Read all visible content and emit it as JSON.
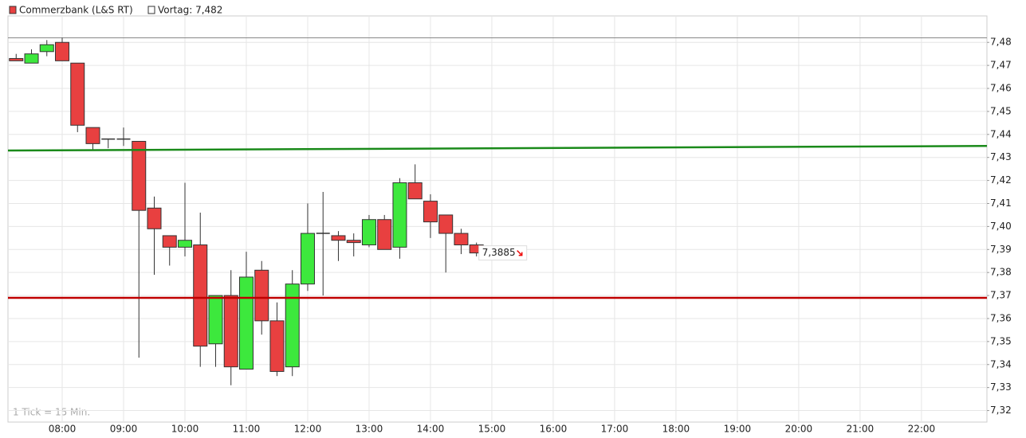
{
  "chart_data": {
    "type": "candlestick",
    "x": [
      "07:15",
      "07:30",
      "07:45",
      "08:00",
      "08:15",
      "08:30",
      "08:45",
      "09:00",
      "09:15",
      "09:30",
      "09:45",
      "10:00",
      "10:15",
      "10:30",
      "10:45",
      "11:00",
      "11:15",
      "11:30",
      "11:45",
      "12:00",
      "12:15",
      "12:30",
      "12:45",
      "13:00",
      "13:15",
      "13:30",
      "13:45",
      "14:00",
      "14:15",
      "14:30",
      "14:45"
    ],
    "series": [
      {
        "name": "Commerzbank (L&S RT)",
        "color": "#e84040",
        "up_color": "#3de83d",
        "open": [
          7.473,
          7.471,
          7.476,
          7.48,
          7.471,
          7.443,
          7.438,
          7.438,
          7.437,
          7.408,
          7.396,
          7.391,
          7.392,
          7.349,
          7.37,
          7.338,
          7.381,
          7.359,
          7.339,
          7.375,
          7.397,
          7.396,
          7.394,
          7.392,
          7.403,
          7.391,
          7.419,
          7.411,
          7.405,
          7.397,
          7.392
        ],
        "high": [
          7.475,
          7.477,
          7.481,
          7.482,
          7.471,
          7.443,
          7.438,
          7.443,
          7.437,
          7.413,
          7.396,
          7.419,
          7.406,
          7.37,
          7.381,
          7.389,
          7.385,
          7.367,
          7.381,
          7.41,
          7.415,
          7.398,
          7.397,
          7.405,
          7.405,
          7.421,
          7.427,
          7.414,
          7.405,
          7.399,
          7.393
        ],
        "low": [
          7.472,
          7.471,
          7.474,
          7.472,
          7.441,
          7.433,
          7.434,
          7.435,
          7.343,
          7.379,
          7.383,
          7.387,
          7.339,
          7.339,
          7.331,
          7.338,
          7.353,
          7.335,
          7.335,
          7.372,
          7.37,
          7.385,
          7.387,
          7.391,
          7.39,
          7.386,
          7.412,
          7.395,
          7.38,
          7.388,
          7.387
        ],
        "close": [
          7.472,
          7.475,
          7.479,
          7.472,
          7.444,
          7.436,
          7.438,
          7.438,
          7.407,
          7.399,
          7.391,
          7.394,
          7.348,
          7.37,
          7.339,
          7.378,
          7.359,
          7.337,
          7.375,
          7.397,
          7.397,
          7.394,
          7.393,
          7.403,
          7.39,
          7.419,
          7.412,
          7.402,
          7.397,
          7.392,
          7.3885
        ]
      }
    ],
    "previous_close": {
      "value": 7.482,
      "label": "Vortag: 7,482"
    },
    "last_price": {
      "value": 7.3885,
      "label": "7,3885"
    },
    "lines": [
      {
        "color": "#1a8a1a",
        "values": [
          7.433,
          7.435
        ]
      },
      {
        "color": "#c00000",
        "values": [
          7.369,
          7.369
        ]
      }
    ],
    "annotation": "1 Tick = 15 Min.",
    "xlim": [
      "07:07",
      "23:04"
    ],
    "xticks": [
      "08:00",
      "09:00",
      "10:00",
      "11:00",
      "12:00",
      "13:00",
      "14:00",
      "15:00",
      "16:00",
      "17:00",
      "18:00",
      "19:00",
      "20:00",
      "21:00",
      "22:00"
    ],
    "ylim": [
      7.315,
      7.4915
    ],
    "yticks": [
      {
        "value": 7.32,
        "label": "7,32"
      },
      {
        "value": 7.33,
        "label": "7,33"
      },
      {
        "value": 7.34,
        "label": "7,34"
      },
      {
        "value": 7.35,
        "label": "7,35"
      },
      {
        "value": 7.36,
        "label": "7,36"
      },
      {
        "value": 7.37,
        "label": "7,37"
      },
      {
        "value": 7.38,
        "label": "7,38"
      },
      {
        "value": 7.39,
        "label": "7,39"
      },
      {
        "value": 7.4,
        "label": "7,40"
      },
      {
        "value": 7.41,
        "label": "7,41"
      },
      {
        "value": 7.42,
        "label": "7,42"
      },
      {
        "value": 7.43,
        "label": "7,43"
      },
      {
        "value": 7.44,
        "label": "7,44"
      },
      {
        "value": 7.45,
        "label": "7,45"
      },
      {
        "value": 7.46,
        "label": "7,46"
      },
      {
        "value": 7.47,
        "label": "7,47"
      },
      {
        "value": 7.48,
        "label": "7,48"
      }
    ],
    "grid": true
  }
}
